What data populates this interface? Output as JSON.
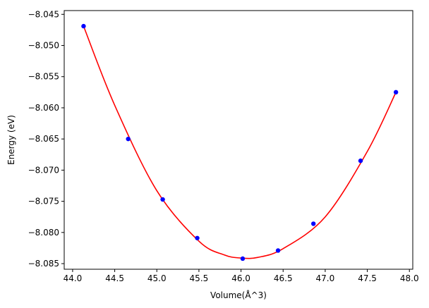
{
  "chart_data": {
    "type": "scatter",
    "xlabel": "Volume(Å^3)",
    "ylabel": "Energy (eV)",
    "xlim": [
      43.9,
      48.04
    ],
    "ylim": [
      -8.0859,
      -8.0444
    ],
    "xticks": [
      44.0,
      44.5,
      45.0,
      45.5,
      46.0,
      46.5,
      47.0,
      47.5,
      48.0
    ],
    "xtick_labels": [
      "44.0",
      "44.5",
      "45.0",
      "45.5",
      "46.0",
      "46.5",
      "47.0",
      "47.5",
      "48.0"
    ],
    "yticks": [
      -8.085,
      -8.08,
      -8.075,
      -8.07,
      -8.065,
      -8.06,
      -8.055,
      -8.05,
      -8.045
    ],
    "ytick_labels": [
      "−8.085",
      "−8.080",
      "−8.075",
      "−8.070",
      "−8.065",
      "−8.060",
      "−8.055",
      "−8.050",
      "−8.045"
    ],
    "grid": false,
    "series": [
      {
        "kind": "points",
        "color": "#0000ff",
        "x": [
          44.13,
          44.66,
          45.07,
          45.48,
          46.02,
          46.44,
          46.86,
          47.42,
          47.84
        ],
        "y": [
          -8.0469,
          -8.065,
          -8.0747,
          -8.0809,
          -8.0842,
          -8.0829,
          -8.0786,
          -8.0685,
          -8.0575
        ]
      },
      {
        "kind": "fit-curve",
        "color": "#ff0000",
        "x": [
          44.13,
          44.5,
          45.0,
          45.5,
          45.8,
          46.0,
          46.2,
          46.5,
          47.0,
          47.5,
          47.84
        ],
        "y": [
          -8.0469,
          -8.0596,
          -8.0733,
          -8.0814,
          -8.0836,
          -8.0841,
          -8.084,
          -8.0826,
          -8.0775,
          -8.067,
          -8.0575
        ]
      }
    ]
  }
}
